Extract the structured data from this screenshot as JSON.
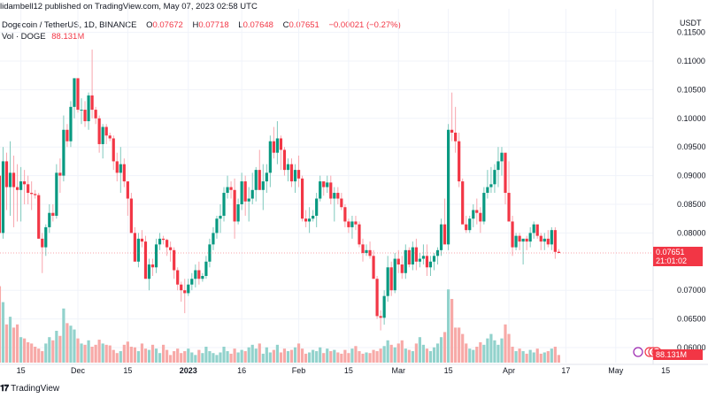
{
  "header": {
    "published": "lidambell12 published on TradingView.com, May 07, 2023 02:58 UTC"
  },
  "legend": {
    "symbol": "Dogecoin / TetherUS, 1D, BINANCE",
    "o_label": "O",
    "o": "0.07672",
    "h_label": "H",
    "h": "0.07718",
    "l_label": "L",
    "l": "0.07648",
    "c_label": "C",
    "c": "0.07651",
    "change": "−0.00021 (−0.27%)",
    "vol_label": "Vol · DOGE",
    "vol": "88.131M"
  },
  "price_axis": {
    "currency": "USDT",
    "current_price": "0.07651",
    "countdown": "21:01:02",
    "volume_tag": "88.131M"
  },
  "footer": {
    "brand": "TradingView"
  },
  "colors": {
    "up": "#089981",
    "down": "#f23645",
    "up_vol": "#92d2cc",
    "down_vol": "#f7a9a7",
    "grid": "#f0f3fa",
    "price_line": "#f23645"
  },
  "chart_data": {
    "type": "candlestick",
    "title": "Dogecoin / TetherUS, 1D, BINANCE",
    "ylabel": "USDT",
    "ylim": [
      0.0585,
      0.1165
    ],
    "y_ticks": [
      "0.11500",
      "0.11000",
      "0.10500",
      "0.10000",
      "0.09500",
      "0.09000",
      "0.08500",
      "0.08000",
      "0.07000",
      "0.06500",
      "0.06000"
    ],
    "x_ticks": [
      {
        "label": "15",
        "day": -16
      },
      {
        "label": "Dec",
        "day": 0
      },
      {
        "label": "15",
        "day": 14
      },
      {
        "label": "2023",
        "day": 31,
        "bold": true
      },
      {
        "label": "16",
        "day": 46
      },
      {
        "label": "Feb",
        "day": 62
      },
      {
        "label": "15",
        "day": 76
      },
      {
        "label": "Mar",
        "day": 90
      },
      {
        "label": "15",
        "day": 104
      },
      {
        "label": "Apr",
        "day": 121
      },
      {
        "label": "17",
        "day": 137
      },
      {
        "label": "May",
        "day": 151
      },
      {
        "label": "15",
        "day": 165
      }
    ],
    "start_day": -22,
    "candles": [
      [
        0.09,
        0.095,
        0.08,
        0.08,
        120
      ],
      [
        0.08,
        0.095,
        0.079,
        0.0925,
        95
      ],
      [
        0.0925,
        0.094,
        0.084,
        0.088,
        60
      ],
      [
        0.088,
        0.096,
        0.083,
        0.0905,
        72
      ],
      [
        0.0905,
        0.0935,
        0.081,
        0.088,
        55
      ],
      [
        0.088,
        0.092,
        0.082,
        0.0875,
        60
      ],
      [
        0.0875,
        0.0915,
        0.082,
        0.089,
        40
      ],
      [
        0.089,
        0.091,
        0.085,
        0.0885,
        38
      ],
      [
        0.0885,
        0.09,
        0.085,
        0.087,
        32
      ],
      [
        0.087,
        0.089,
        0.084,
        0.0868,
        30
      ],
      [
        0.0868,
        0.0875,
        0.086,
        0.0866,
        25
      ],
      [
        0.0866,
        0.087,
        0.079,
        0.079,
        22
      ],
      [
        0.079,
        0.08,
        0.073,
        0.0775,
        18
      ],
      [
        0.0775,
        0.0815,
        0.076,
        0.081,
        30
      ],
      [
        0.081,
        0.085,
        0.08,
        0.0835,
        40
      ],
      [
        0.0835,
        0.085,
        0.082,
        0.083,
        35
      ],
      [
        0.083,
        0.092,
        0.0825,
        0.0905,
        50
      ],
      [
        0.0905,
        0.093,
        0.087,
        0.09,
        42
      ],
      [
        0.09,
        0.1005,
        0.089,
        0.098,
        85
      ],
      [
        0.098,
        0.099,
        0.095,
        0.096,
        62
      ],
      [
        0.096,
        0.103,
        0.095,
        0.102,
        58
      ],
      [
        0.102,
        0.107,
        0.1,
        0.107,
        52
      ],
      [
        0.107,
        0.1065,
        0.101,
        0.1015,
        38
      ],
      [
        0.1015,
        0.1035,
        0.099,
        0.1015,
        30
      ],
      [
        0.1015,
        0.103,
        0.0985,
        0.0995,
        28
      ],
      [
        0.0995,
        0.1045,
        0.098,
        0.104,
        35
      ],
      [
        0.104,
        0.112,
        0.1,
        0.1015,
        25
      ],
      [
        0.1015,
        0.102,
        0.099,
        0.1,
        28
      ],
      [
        0.1,
        0.1005,
        0.094,
        0.0955,
        36
      ],
      [
        0.0955,
        0.099,
        0.093,
        0.0985,
        30
      ],
      [
        0.0985,
        0.099,
        0.0955,
        0.097,
        28
      ],
      [
        0.097,
        0.0975,
        0.096,
        0.0965,
        27
      ],
      [
        0.0965,
        0.097,
        0.091,
        0.0925,
        20
      ],
      [
        0.0925,
        0.094,
        0.089,
        0.0905,
        15
      ],
      [
        0.0905,
        0.095,
        0.087,
        0.092,
        18
      ],
      [
        0.092,
        0.093,
        0.088,
        0.089,
        28
      ],
      [
        0.089,
        0.088,
        0.083,
        0.086,
        33
      ],
      [
        0.086,
        0.087,
        0.08,
        0.08,
        25
      ],
      [
        0.08,
        0.081,
        0.076,
        0.075,
        24
      ],
      [
        0.075,
        0.08,
        0.074,
        0.079,
        18
      ],
      [
        0.079,
        0.0805,
        0.0775,
        0.0785,
        30
      ],
      [
        0.0785,
        0.0795,
        0.072,
        0.072,
        22
      ],
      [
        0.072,
        0.0755,
        0.07,
        0.0745,
        20
      ],
      [
        0.0745,
        0.0755,
        0.0725,
        0.074,
        28
      ],
      [
        0.074,
        0.079,
        0.073,
        0.078,
        22
      ],
      [
        0.078,
        0.08,
        0.077,
        0.079,
        15
      ],
      [
        0.079,
        0.0795,
        0.078,
        0.0788,
        28
      ],
      [
        0.0788,
        0.079,
        0.076,
        0.0775,
        20
      ],
      [
        0.0775,
        0.0785,
        0.075,
        0.077,
        12
      ],
      [
        0.077,
        0.0775,
        0.072,
        0.0735,
        18
      ],
      [
        0.0735,
        0.074,
        0.07,
        0.071,
        22
      ],
      [
        0.071,
        0.0715,
        0.068,
        0.07,
        15
      ],
      [
        0.07,
        0.072,
        0.066,
        0.0695,
        18
      ],
      [
        0.0695,
        0.072,
        0.069,
        0.071,
        22
      ],
      [
        0.071,
        0.073,
        0.07,
        0.072,
        16
      ],
      [
        0.072,
        0.0745,
        0.0705,
        0.0735,
        12
      ],
      [
        0.0735,
        0.075,
        0.071,
        0.072,
        20
      ],
      [
        0.072,
        0.073,
        0.0715,
        0.0725,
        15
      ],
      [
        0.0725,
        0.076,
        0.072,
        0.075,
        25
      ],
      [
        0.075,
        0.079,
        0.074,
        0.078,
        18
      ],
      [
        0.078,
        0.081,
        0.077,
        0.08,
        15
      ],
      [
        0.08,
        0.083,
        0.079,
        0.0825,
        12
      ],
      [
        0.0825,
        0.085,
        0.08,
        0.083,
        16
      ],
      [
        0.083,
        0.088,
        0.082,
        0.087,
        25
      ],
      [
        0.087,
        0.09,
        0.086,
        0.088,
        18
      ],
      [
        0.088,
        0.089,
        0.086,
        0.0875,
        14
      ],
      [
        0.0875,
        0.0895,
        0.079,
        0.082,
        22
      ],
      [
        0.082,
        0.086,
        0.0815,
        0.085,
        16
      ],
      [
        0.085,
        0.0905,
        0.084,
        0.089,
        20
      ],
      [
        0.089,
        0.09,
        0.083,
        0.0855,
        18
      ],
      [
        0.0855,
        0.088,
        0.082,
        0.086,
        24
      ],
      [
        0.086,
        0.0905,
        0.085,
        0.0875,
        28
      ],
      [
        0.0875,
        0.0915,
        0.0855,
        0.091,
        22
      ],
      [
        0.091,
        0.0945,
        0.088,
        0.0875,
        30
      ],
      [
        0.0875,
        0.092,
        0.084,
        0.089,
        14
      ],
      [
        0.089,
        0.092,
        0.087,
        0.0905,
        24
      ],
      [
        0.0905,
        0.097,
        0.088,
        0.096,
        16
      ],
      [
        0.096,
        0.0985,
        0.093,
        0.094,
        20
      ],
      [
        0.094,
        0.0995,
        0.092,
        0.0965,
        28
      ],
      [
        0.0965,
        0.097,
        0.091,
        0.0945,
        16
      ],
      [
        0.0945,
        0.095,
        0.09,
        0.091,
        22
      ],
      [
        0.091,
        0.093,
        0.089,
        0.092,
        18
      ],
      [
        0.092,
        0.093,
        0.088,
        0.089,
        20
      ],
      [
        0.089,
        0.092,
        0.087,
        0.091,
        24
      ],
      [
        0.091,
        0.0935,
        0.088,
        0.0895,
        30
      ],
      [
        0.0895,
        0.09,
        0.082,
        0.0825,
        22
      ],
      [
        0.0825,
        0.084,
        0.081,
        0.082,
        14
      ],
      [
        0.082,
        0.0845,
        0.08,
        0.0825,
        16
      ],
      [
        0.0825,
        0.084,
        0.082,
        0.083,
        20
      ],
      [
        0.083,
        0.087,
        0.081,
        0.086,
        18
      ],
      [
        0.086,
        0.09,
        0.0855,
        0.089,
        24
      ],
      [
        0.089,
        0.0885,
        0.0865,
        0.088,
        15
      ],
      [
        0.088,
        0.09,
        0.087,
        0.0888,
        22
      ],
      [
        0.0888,
        0.09,
        0.085,
        0.086,
        18
      ],
      [
        0.086,
        0.088,
        0.082,
        0.087,
        20
      ],
      [
        0.087,
        0.088,
        0.085,
        0.086,
        16
      ],
      [
        0.086,
        0.087,
        0.084,
        0.0845,
        14
      ],
      [
        0.0845,
        0.085,
        0.081,
        0.082,
        20
      ],
      [
        0.082,
        0.0825,
        0.08,
        0.081,
        15
      ],
      [
        0.081,
        0.083,
        0.079,
        0.082,
        22
      ],
      [
        0.082,
        0.083,
        0.0805,
        0.0815,
        26
      ],
      [
        0.0815,
        0.082,
        0.0775,
        0.078,
        18
      ],
      [
        0.078,
        0.079,
        0.075,
        0.0765,
        14
      ],
      [
        0.0765,
        0.078,
        0.076,
        0.077,
        16
      ],
      [
        0.077,
        0.0785,
        0.0755,
        0.076,
        15
      ],
      [
        0.076,
        0.077,
        0.072,
        0.072,
        20
      ],
      [
        0.072,
        0.0725,
        0.065,
        0.0655,
        18
      ],
      [
        0.0655,
        0.0665,
        0.063,
        0.0652,
        22
      ],
      [
        0.0652,
        0.07,
        0.064,
        0.069,
        26
      ],
      [
        0.069,
        0.076,
        0.068,
        0.074,
        35
      ],
      [
        0.074,
        0.075,
        0.069,
        0.07,
        28
      ],
      [
        0.07,
        0.0765,
        0.0695,
        0.0755,
        24
      ],
      [
        0.0755,
        0.077,
        0.073,
        0.0745,
        30
      ],
      [
        0.0745,
        0.076,
        0.072,
        0.073,
        35
      ],
      [
        0.073,
        0.078,
        0.072,
        0.077,
        22
      ],
      [
        0.077,
        0.0775,
        0.074,
        0.0745,
        20
      ],
      [
        0.0745,
        0.0785,
        0.0735,
        0.0775,
        18
      ],
      [
        0.0775,
        0.079,
        0.0735,
        0.075,
        30
      ],
      [
        0.075,
        0.0765,
        0.074,
        0.0755,
        40
      ],
      [
        0.0755,
        0.078,
        0.0745,
        0.076,
        28
      ],
      [
        0.076,
        0.078,
        0.0725,
        0.074,
        22
      ],
      [
        0.074,
        0.076,
        0.0725,
        0.075,
        18
      ],
      [
        0.075,
        0.0765,
        0.0735,
        0.076,
        24
      ],
      [
        0.076,
        0.0775,
        0.0745,
        0.077,
        30
      ],
      [
        0.077,
        0.0825,
        0.076,
        0.0815,
        40
      ],
      [
        0.0815,
        0.086,
        0.079,
        0.078,
        48
      ],
      [
        0.078,
        0.099,
        0.077,
        0.098,
        115
      ],
      [
        0.098,
        0.1045,
        0.096,
        0.0975,
        100
      ],
      [
        0.0975,
        0.102,
        0.094,
        0.096,
        55
      ],
      [
        0.096,
        0.0975,
        0.088,
        0.089,
        55
      ],
      [
        0.089,
        0.0895,
        0.082,
        0.0815,
        45
      ],
      [
        0.0815,
        0.083,
        0.08,
        0.0805,
        30
      ],
      [
        0.0805,
        0.083,
        0.08,
        0.0825,
        22
      ],
      [
        0.0825,
        0.085,
        0.081,
        0.084,
        20
      ],
      [
        0.084,
        0.086,
        0.0815,
        0.0835,
        25
      ],
      [
        0.0835,
        0.0845,
        0.08,
        0.082,
        32
      ],
      [
        0.082,
        0.088,
        0.0815,
        0.087,
        28
      ],
      [
        0.087,
        0.091,
        0.086,
        0.088,
        38
      ],
      [
        0.088,
        0.0915,
        0.087,
        0.0885,
        45
      ],
      [
        0.0885,
        0.092,
        0.087,
        0.091,
        35
      ],
      [
        0.091,
        0.095,
        0.088,
        0.0925,
        28
      ],
      [
        0.0925,
        0.095,
        0.09,
        0.094,
        38
      ],
      [
        0.094,
        0.0935,
        0.085,
        0.087,
        60
      ],
      [
        0.087,
        0.0925,
        0.083,
        0.082,
        45
      ],
      [
        0.082,
        0.083,
        0.076,
        0.0775,
        25
      ],
      [
        0.0775,
        0.08,
        0.077,
        0.0795,
        18
      ],
      [
        0.0795,
        0.08,
        0.077,
        0.0785,
        22
      ],
      [
        0.0785,
        0.079,
        0.0745,
        0.079,
        18
      ],
      [
        0.079,
        0.0795,
        0.077,
        0.0785,
        14
      ],
      [
        0.0785,
        0.081,
        0.0775,
        0.08,
        20
      ],
      [
        0.08,
        0.082,
        0.079,
        0.0815,
        16
      ],
      [
        0.0815,
        0.081,
        0.079,
        0.0795,
        22
      ],
      [
        0.0795,
        0.08,
        0.077,
        0.0785,
        14
      ],
      [
        0.0785,
        0.08,
        0.077,
        0.079,
        16
      ],
      [
        0.079,
        0.0805,
        0.0775,
        0.078,
        18
      ],
      [
        0.078,
        0.081,
        0.077,
        0.0805,
        22
      ],
      [
        0.0805,
        0.081,
        0.0755,
        0.0767,
        25
      ],
      [
        0.07672,
        0.07718,
        0.07648,
        0.07651,
        12
      ]
    ]
  }
}
